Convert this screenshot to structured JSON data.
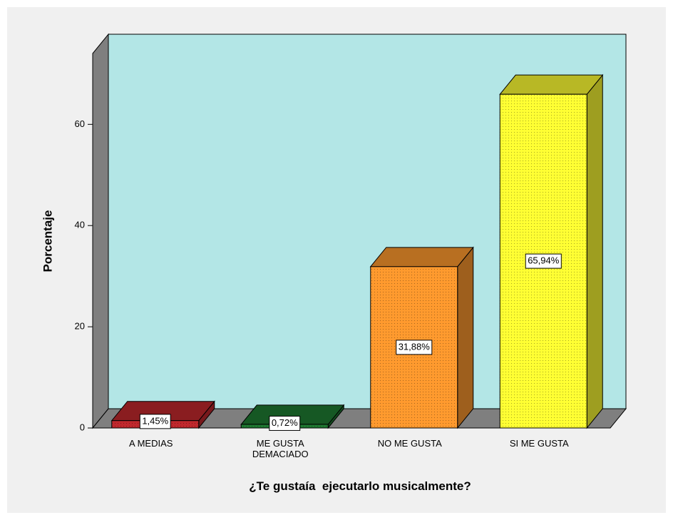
{
  "chart_data": {
    "type": "bar3d",
    "categories": [
      "A MEDIAS",
      "ME GUSTA DEMACIADO",
      "NO ME GUSTA",
      "SI ME GUSTA"
    ],
    "values": [
      1.45,
      0.72,
      31.88,
      65.94
    ],
    "value_labels": [
      "1,45%",
      "0,72%",
      "31,88%",
      "65,94%"
    ],
    "colors": [
      "#c0282d",
      "#1f7a32",
      "#ff9a2e",
      "#ffff33"
    ],
    "wall_color": "#b3e6e6",
    "ylim": [
      0,
      74
    ],
    "yticks": [
      0,
      20,
      40,
      60
    ],
    "y_label": "Porcentaje",
    "x_label": "¿Te gustaía  ejecutarlo musicalmente?"
  }
}
